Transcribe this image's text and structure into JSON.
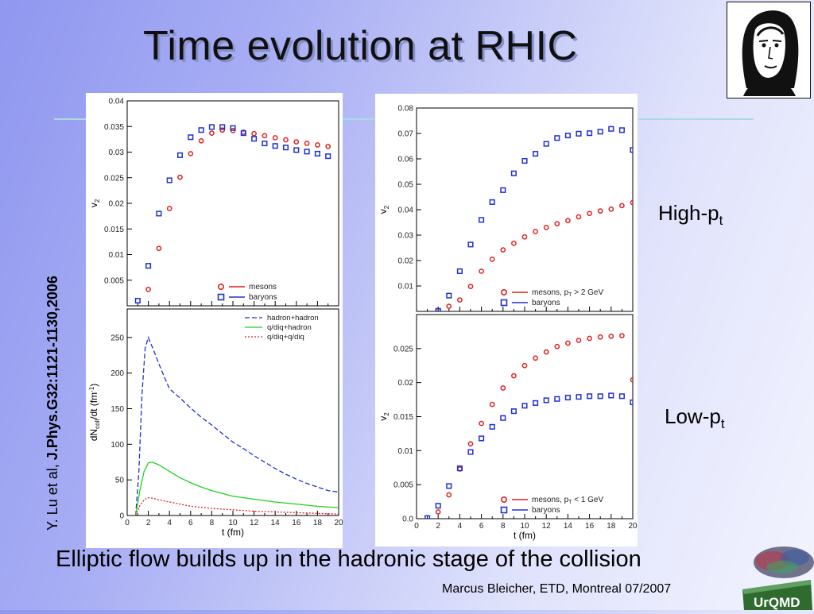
{
  "slide": {
    "title": "Time evolution at RHIC",
    "reference_prefix": "Y. Lu et al, ",
    "reference_bold": "J.Phys.G32:1121-1130,2006",
    "high_label": "High-p",
    "high_sub": "t",
    "low_label": "Low-p",
    "low_sub": "t",
    "caption": "Elliptic flow builds up in the hadronic stage of the collision",
    "author": "Marcus Bleicher, ETD, Montreal 07/2007",
    "logo_text": "UrQMD"
  },
  "colors": {
    "red": "#e02020",
    "blue": "#2030d0",
    "green": "#20d020"
  },
  "chart_data": [
    {
      "id": "left-top",
      "type": "scatter",
      "ylabel": "v",
      "ylabel_sub": "2",
      "xlim": [
        0,
        20
      ],
      "ylim": [
        0,
        0.04
      ],
      "yticks": [
        0.005,
        0.01,
        0.015,
        0.02,
        0.025,
        0.03,
        0.035,
        0.04
      ],
      "ytick_labels": [
        "0.005",
        "0.01",
        "0.015",
        "0.02",
        "0.025",
        "0.03",
        "0.035",
        "0.04"
      ],
      "legend_position": "bottom-right",
      "series": [
        {
          "name": "mesons",
          "marker": "circle",
          "color": "#e02020",
          "x": [
            2,
            3,
            4,
            5,
            6,
            7,
            8,
            9,
            10,
            11,
            12,
            13,
            14,
            15,
            16,
            17,
            18,
            19
          ],
          "y": [
            0.0032,
            0.0112,
            0.019,
            0.0251,
            0.0297,
            0.0322,
            0.0337,
            0.0343,
            0.0342,
            0.0339,
            0.0336,
            0.0332,
            0.0328,
            0.0324,
            0.032,
            0.0317,
            0.0314,
            0.0311
          ]
        },
        {
          "name": "baryons",
          "marker": "square",
          "color": "#2030d0",
          "x": [
            1,
            2,
            3,
            4,
            5,
            6,
            7,
            8,
            9,
            10,
            11,
            12,
            13,
            14,
            15,
            16,
            17,
            18,
            19
          ],
          "y": [
            0.001,
            0.0078,
            0.018,
            0.0245,
            0.0294,
            0.0329,
            0.0343,
            0.0349,
            0.0349,
            0.0347,
            0.0337,
            0.0326,
            0.0317,
            0.0312,
            0.0309,
            0.0304,
            0.0301,
            0.0297,
            0.0292
          ]
        }
      ]
    },
    {
      "id": "left-bottom",
      "type": "line",
      "ylabel": "dN",
      "ylabel_sub": "coll",
      "ylabel_rest": "/dt (fm",
      "ylabel_sup": "-1",
      "ylabel_end": ")",
      "xlabel": "t (fm)",
      "xlim": [
        0,
        20
      ],
      "ylim": [
        0,
        290
      ],
      "yticks": [
        0,
        50,
        100,
        150,
        200,
        250
      ],
      "ytick_labels": [
        "0",
        "50",
        "100",
        "150",
        "200",
        "250"
      ],
      "xticks": [
        0,
        2,
        4,
        6,
        8,
        10,
        12,
        14,
        16,
        18,
        20
      ],
      "xtick_labels": [
        "0",
        "2",
        "4",
        "6",
        "8",
        "10",
        "12",
        "14",
        "16",
        "18",
        "20"
      ],
      "legend_position": "top-right",
      "series": [
        {
          "name": "hadron+hadron",
          "dash": "6,3",
          "color": "#2030d0",
          "x": [
            0.8,
            1.1,
            1.4,
            1.7,
            2.0,
            2.5,
            3.0,
            3.5,
            4.0,
            5.0,
            6.0,
            7.0,
            8.0,
            9.0,
            10,
            11,
            12,
            13,
            14,
            15,
            16,
            17,
            18,
            19,
            20
          ],
          "y": [
            0,
            60,
            170,
            235,
            250,
            232,
            213,
            195,
            178,
            165,
            151,
            138,
            127,
            115,
            103,
            94,
            84,
            75,
            66,
            58,
            51,
            45,
            40,
            35,
            33
          ]
        },
        {
          "name": "q/diq+hadron",
          "dash": "",
          "color": "#20d020",
          "x": [
            0.8,
            1.2,
            1.6,
            2.0,
            2.4,
            3.0,
            4.0,
            5.0,
            6.0,
            7.0,
            8.0,
            9.0,
            10,
            12,
            14,
            16,
            18,
            20
          ],
          "y": [
            0,
            35,
            62,
            74,
            75,
            71,
            62,
            53,
            46,
            40,
            35,
            31,
            27,
            23,
            19,
            16,
            13,
            11
          ]
        },
        {
          "name": "q/diq+q/diq",
          "dash": "2,2",
          "color": "#e02020",
          "x": [
            0.8,
            1.2,
            1.6,
            2.0,
            2.5,
            3.0,
            4.0,
            5.0,
            6.0,
            8.0,
            10,
            12,
            14,
            16,
            18,
            20
          ],
          "y": [
            0,
            14,
            22,
            25,
            24,
            22,
            19,
            16,
            13,
            10,
            8,
            6,
            5,
            4,
            3,
            2
          ]
        }
      ]
    },
    {
      "id": "right-top",
      "type": "scatter",
      "ylabel": "v",
      "ylabel_sub": "2",
      "xlim": [
        0,
        20
      ],
      "ylim": [
        0,
        0.08
      ],
      "yticks": [
        0.01,
        0.02,
        0.03,
        0.04,
        0.05,
        0.06,
        0.07,
        0.08
      ],
      "ytick_labels": [
        "0.01",
        "0.02",
        "0.03",
        "0.04",
        "0.05",
        "0.06",
        "0.07",
        "0.08"
      ],
      "legend_position": "bottom-right",
      "series": [
        {
          "name": "mesons, p",
          "name_sub": "T",
          "name_rest": " > 2 GeV",
          "marker": "circle",
          "color": "#e02020",
          "x": [
            2,
            3,
            4,
            5,
            6,
            7,
            8,
            9,
            10,
            11,
            12,
            13,
            14,
            15,
            16,
            17,
            18,
            19,
            20
          ],
          "y": [
            0.0004,
            0.002,
            0.0045,
            0.0098,
            0.0158,
            0.0205,
            0.0242,
            0.0268,
            0.0293,
            0.0314,
            0.033,
            0.0345,
            0.0357,
            0.0372,
            0.0385,
            0.0395,
            0.0402,
            0.0416,
            0.0428
          ]
        },
        {
          "name": "baryons",
          "marker": "square",
          "color": "#2030d0",
          "x": [
            2,
            3,
            4,
            5,
            6,
            7,
            8,
            9,
            10,
            11,
            12,
            13,
            14,
            15,
            16,
            17,
            18,
            19,
            20
          ],
          "y": [
            0.0002,
            0.0062,
            0.0158,
            0.0263,
            0.036,
            0.043,
            0.0477,
            0.0543,
            0.0592,
            0.062,
            0.0659,
            0.0682,
            0.0692,
            0.0699,
            0.0701,
            0.0707,
            0.0718,
            0.0713,
            0.0635
          ]
        }
      ]
    },
    {
      "id": "right-bottom",
      "type": "scatter",
      "ylabel": "v",
      "ylabel_sub": "2",
      "xlabel": "t (fm)",
      "xlim": [
        0,
        20
      ],
      "ylim": [
        0,
        0.03
      ],
      "yticks": [
        0,
        0.005,
        0.01,
        0.015,
        0.02,
        0.025
      ],
      "ytick_labels": [
        "0.0",
        "0.005",
        "0.01",
        "0.015",
        "0.02",
        "0.025"
      ],
      "xticks": [
        0,
        2,
        4,
        6,
        8,
        10,
        12,
        14,
        16,
        18,
        20
      ],
      "xtick_labels": [
        "0",
        "2",
        "4",
        "6",
        "8",
        "10",
        "12",
        "14",
        "16",
        "18",
        "20"
      ],
      "legend_position": "bottom-right",
      "series": [
        {
          "name": "mesons, p",
          "name_sub": "T",
          "name_rest": " < 1 GeV",
          "marker": "circle",
          "color": "#e02020",
          "x": [
            2,
            3,
            4,
            5,
            6,
            7,
            8,
            9,
            10,
            11,
            12,
            13,
            14,
            15,
            16,
            17,
            18,
            19,
            20
          ],
          "y": [
            0.001,
            0.0035,
            0.0073,
            0.011,
            0.014,
            0.0168,
            0.0192,
            0.021,
            0.0225,
            0.0236,
            0.0245,
            0.0253,
            0.0258,
            0.0262,
            0.0265,
            0.0267,
            0.0268,
            0.0269,
            0.0204
          ]
        },
        {
          "name": "baryons",
          "marker": "square",
          "color": "#2030d0",
          "x": [
            1,
            2,
            3,
            4,
            5,
            6,
            7,
            8,
            9,
            10,
            11,
            12,
            13,
            14,
            15,
            16,
            17,
            18,
            19,
            20
          ],
          "y": [
            0.0001,
            0.0019,
            0.0048,
            0.0074,
            0.0098,
            0.0118,
            0.0135,
            0.0148,
            0.0158,
            0.0166,
            0.017,
            0.0174,
            0.0176,
            0.0178,
            0.0179,
            0.018,
            0.018,
            0.0181,
            0.018,
            0.0171
          ]
        }
      ]
    }
  ]
}
